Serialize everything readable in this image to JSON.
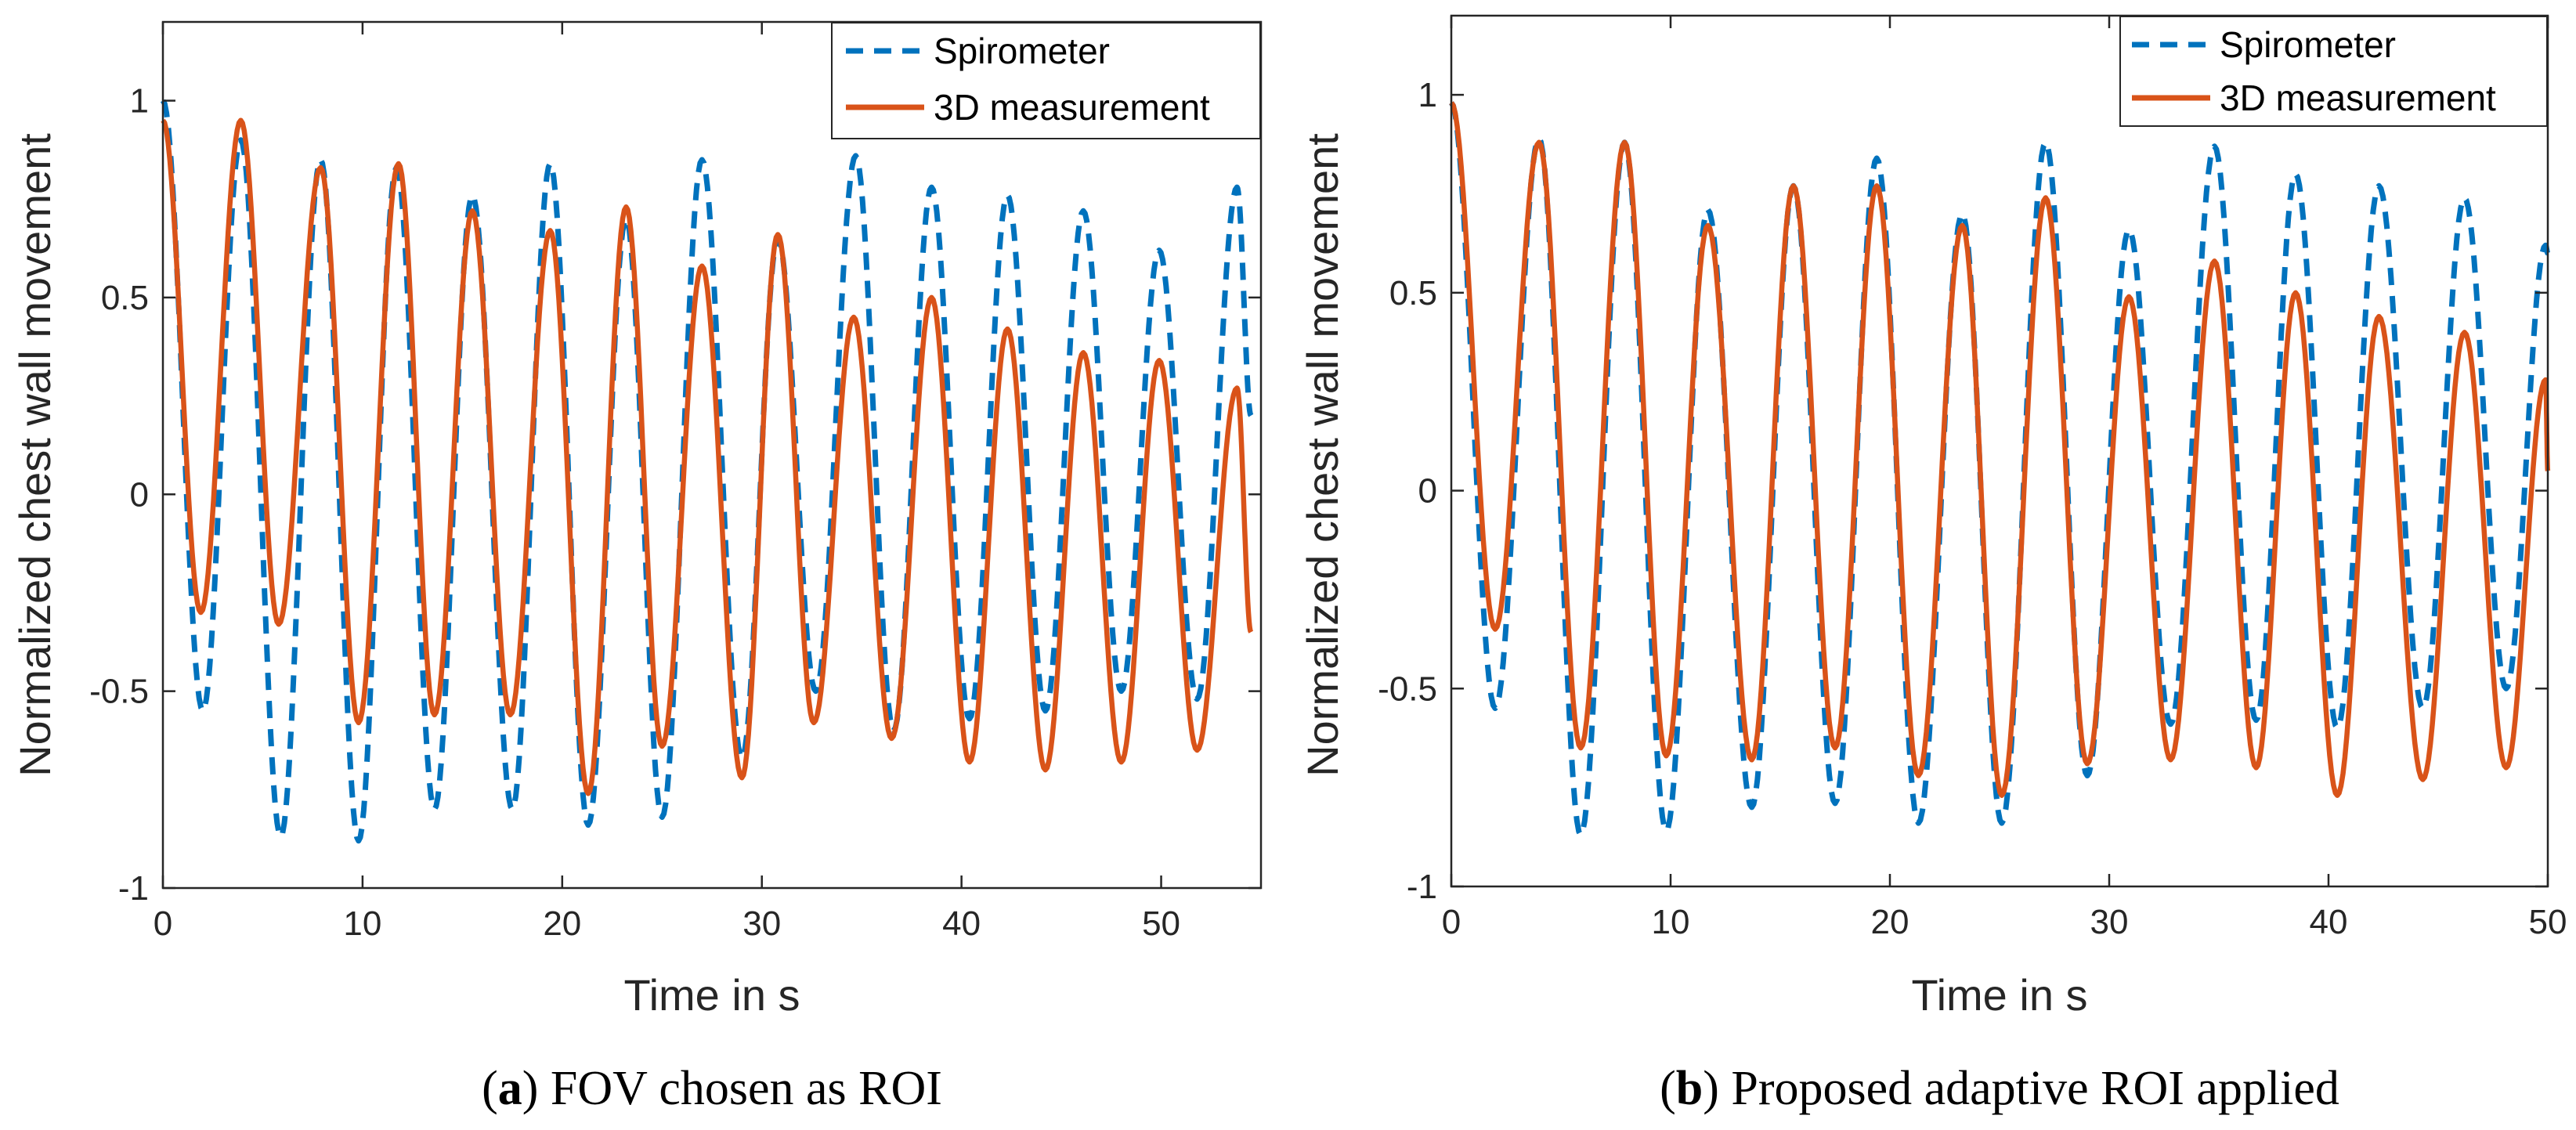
{
  "colors": {
    "spirometer": "#0072BD",
    "measurement": "#D95319",
    "axis": "#262626"
  },
  "chart_data": [
    {
      "id": "a",
      "type": "line",
      "caption_letter": "a",
      "caption_text": "FOV chosen as ROI",
      "xlabel": "Time in s",
      "ylabel": "Normalized chest wall movement",
      "xlim": [
        0,
        55
      ],
      "ylim": [
        -1,
        1.2
      ],
      "xticks": [
        "0",
        "10",
        "20",
        "30",
        "40",
        "50"
      ],
      "yticks": [
        "-1",
        "-0.5",
        "0",
        "0.5",
        "1"
      ],
      "legend_location": "top-right",
      "series": [
        {
          "name": "Spirometer",
          "style": "dashed",
          "x": [
            0,
            2.0,
            3.9,
            5.9,
            7.9,
            9.8,
            11.7,
            13.6,
            15.5,
            17.5,
            19.4,
            21.3,
            23.2,
            25.0,
            27.0,
            29.0,
            30.8,
            32.7,
            34.7,
            36.6,
            38.5,
            40.4,
            42.3,
            44.2,
            46.1,
            48.0,
            49.9,
            51.8,
            53.8,
            54.5
          ],
          "y": [
            1.0,
            -0.55,
            0.9,
            -0.87,
            0.85,
            -0.88,
            0.83,
            -0.8,
            0.76,
            -0.8,
            0.84,
            -0.84,
            0.7,
            -0.82,
            0.85,
            -0.67,
            0.65,
            -0.5,
            0.86,
            -0.6,
            0.78,
            -0.57,
            0.76,
            -0.55,
            0.72,
            -0.5,
            0.62,
            -0.52,
            0.78,
            0.2
          ]
        },
        {
          "name": "3D measurement",
          "style": "solid",
          "x": [
            0,
            1.9,
            3.9,
            5.8,
            7.9,
            9.8,
            11.8,
            13.6,
            15.5,
            17.4,
            19.4,
            21.3,
            23.2,
            25.0,
            27.0,
            29.0,
            30.8,
            32.6,
            34.6,
            36.5,
            38.5,
            40.4,
            42.3,
            44.2,
            46.1,
            48.0,
            49.9,
            51.8,
            53.8,
            54.5
          ],
          "y": [
            0.95,
            -0.3,
            0.95,
            -0.33,
            0.83,
            -0.58,
            0.84,
            -0.56,
            0.72,
            -0.56,
            0.67,
            -0.76,
            0.73,
            -0.64,
            0.58,
            -0.72,
            0.66,
            -0.58,
            0.45,
            -0.62,
            0.5,
            -0.68,
            0.42,
            -0.7,
            0.36,
            -0.68,
            0.34,
            -0.65,
            0.27,
            -0.35
          ]
        }
      ]
    },
    {
      "id": "b",
      "type": "line",
      "caption_letter": "b",
      "caption_text": "Proposed adaptive ROI applied",
      "xlabel": "Time in s",
      "ylabel": "Normalized chest wall movement",
      "xlim": [
        0,
        50
      ],
      "ylim": [
        -1,
        1.2
      ],
      "xticks": [
        "0",
        "10",
        "20",
        "30",
        "40",
        "50"
      ],
      "yticks": [
        "-1",
        "-0.5",
        "0",
        "0.5",
        "1"
      ],
      "legend_location": "top-right",
      "series": [
        {
          "name": "Spirometer",
          "style": "dashed",
          "x": [
            0,
            2.0,
            4.0,
            5.9,
            7.9,
            9.8,
            11.7,
            13.7,
            15.6,
            17.5,
            19.4,
            21.3,
            23.3,
            25.1,
            27.1,
            29.0,
            30.9,
            32.8,
            34.8,
            36.7,
            38.5,
            40.4,
            42.3,
            44.3,
            46.2,
            48.1,
            49.9,
            50.0
          ],
          "y": [
            0.98,
            -0.55,
            0.89,
            -0.87,
            0.88,
            -0.86,
            0.71,
            -0.8,
            0.77,
            -0.79,
            0.84,
            -0.84,
            0.7,
            -0.84,
            0.88,
            -0.72,
            0.66,
            -0.59,
            0.87,
            -0.58,
            0.8,
            -0.6,
            0.77,
            -0.55,
            0.74,
            -0.5,
            0.62,
            0.6
          ]
        },
        {
          "name": "3D measurement",
          "style": "solid",
          "x": [
            0,
            2.0,
            4.0,
            5.9,
            7.9,
            9.8,
            11.7,
            13.7,
            15.6,
            17.5,
            19.4,
            21.3,
            23.3,
            25.1,
            27.1,
            29.0,
            30.9,
            32.8,
            34.8,
            36.7,
            38.5,
            40.4,
            42.3,
            44.3,
            46.2,
            48.1,
            49.9,
            50.0
          ],
          "y": [
            0.98,
            -0.35,
            0.88,
            -0.65,
            0.88,
            -0.67,
            0.67,
            -0.68,
            0.77,
            -0.65,
            0.77,
            -0.72,
            0.67,
            -0.77,
            0.74,
            -0.69,
            0.49,
            -0.68,
            0.58,
            -0.7,
            0.5,
            -0.77,
            0.44,
            -0.73,
            0.4,
            -0.7,
            0.28,
            0.05
          ]
        }
      ]
    }
  ]
}
